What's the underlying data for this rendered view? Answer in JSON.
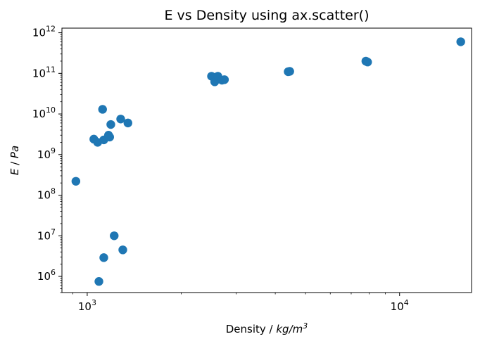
{
  "chart_data": {
    "type": "scatter",
    "title": "E vs Density using ax.scatter()",
    "xlabel": {
      "prefix": "Density / ",
      "math": "kg/m",
      "sup": "3"
    },
    "ylabel": {
      "math": "E",
      "suffix": " / ",
      "math2": "Pa"
    },
    "xscale": "log",
    "yscale": "log",
    "xlim": [
      830,
      17000
    ],
    "ylim": [
      400000,
      1300000000000
    ],
    "x_ticks": [
      {
        "base": "10",
        "exp": "3",
        "value": 1000
      },
      {
        "base": "10",
        "exp": "4",
        "value": 10000
      }
    ],
    "y_ticks": [
      {
        "base": "10",
        "exp": "6",
        "value": 1000000
      },
      {
        "base": "10",
        "exp": "7",
        "value": 10000000
      },
      {
        "base": "10",
        "exp": "8",
        "value": 100000000
      },
      {
        "base": "10",
        "exp": "9",
        "value": 1000000000
      },
      {
        "base": "10",
        "exp": "10",
        "value": 10000000000
      },
      {
        "base": "10",
        "exp": "11",
        "value": 100000000000
      },
      {
        "base": "10",
        "exp": "12",
        "value": 1000000000000
      }
    ],
    "grid": false,
    "marker_color": "#1f77b4",
    "points": [
      {
        "x": 920,
        "y": 220000000
      },
      {
        "x": 1050,
        "y": 2400000000
      },
      {
        "x": 1080,
        "y": 2000000000
      },
      {
        "x": 1090,
        "y": 750000
      },
      {
        "x": 1120,
        "y": 13000000000
      },
      {
        "x": 1130,
        "y": 2300000000
      },
      {
        "x": 1130,
        "y": 2900000
      },
      {
        "x": 1170,
        "y": 3000000000
      },
      {
        "x": 1180,
        "y": 2700000000
      },
      {
        "x": 1190,
        "y": 5500000000
      },
      {
        "x": 1220,
        "y": 10000000
      },
      {
        "x": 1280,
        "y": 7500000000
      },
      {
        "x": 1300,
        "y": 4500000
      },
      {
        "x": 1350,
        "y": 6000000000
      },
      {
        "x": 2500,
        "y": 85000000000
      },
      {
        "x": 2560,
        "y": 62000000000
      },
      {
        "x": 2620,
        "y": 85000000000
      },
      {
        "x": 2700,
        "y": 68000000000
      },
      {
        "x": 2750,
        "y": 70000000000
      },
      {
        "x": 4400,
        "y": 110000000000
      },
      {
        "x": 4450,
        "y": 112000000000
      },
      {
        "x": 7800,
        "y": 200000000000
      },
      {
        "x": 7900,
        "y": 190000000000
      },
      {
        "x": 15700,
        "y": 600000000000
      }
    ]
  }
}
